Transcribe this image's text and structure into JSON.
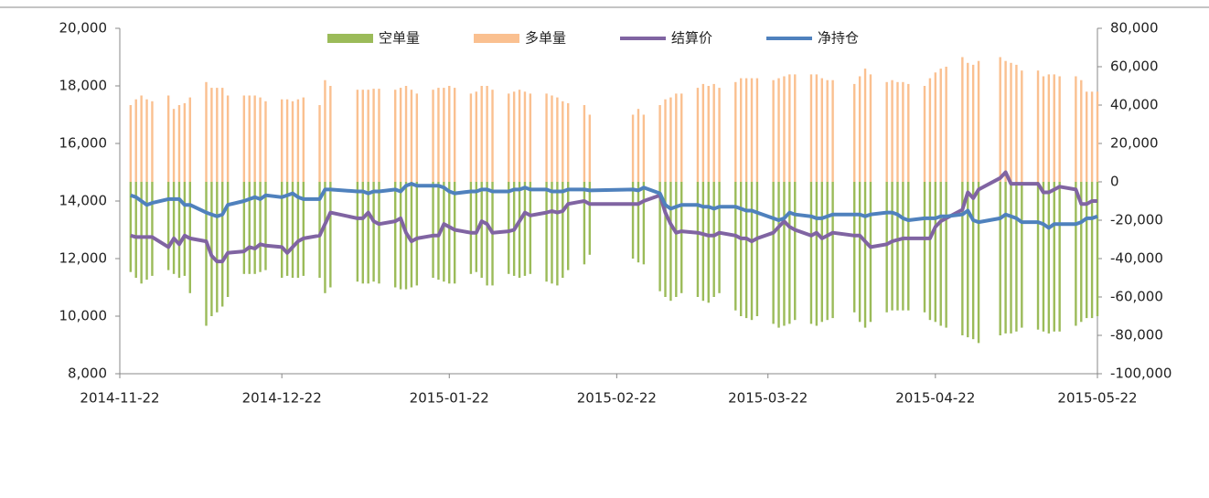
{
  "chart_data": {
    "type": "combo",
    "x": [
      "2014-11-24",
      "2014-11-25",
      "2014-11-26",
      "2014-11-27",
      "2014-11-28",
      "2014-12-01",
      "2014-12-02",
      "2014-12-03",
      "2014-12-04",
      "2014-12-05",
      "2014-12-08",
      "2014-12-09",
      "2014-12-10",
      "2014-12-11",
      "2014-12-12",
      "2014-12-15",
      "2014-12-16",
      "2014-12-17",
      "2014-12-18",
      "2014-12-19",
      "2014-12-22",
      "2014-12-23",
      "2014-12-24",
      "2014-12-25",
      "2014-12-26",
      "2014-12-29",
      "2014-12-30",
      "2014-12-31",
      "2015-01-05",
      "2015-01-06",
      "2015-01-07",
      "2015-01-08",
      "2015-01-09",
      "2015-01-12",
      "2015-01-13",
      "2015-01-14",
      "2015-01-15",
      "2015-01-16",
      "2015-01-19",
      "2015-01-20",
      "2015-01-21",
      "2015-01-22",
      "2015-01-23",
      "2015-01-26",
      "2015-01-27",
      "2015-01-28",
      "2015-01-29",
      "2015-01-30",
      "2015-02-02",
      "2015-02-03",
      "2015-02-04",
      "2015-02-05",
      "2015-02-06",
      "2015-02-09",
      "2015-02-10",
      "2015-02-11",
      "2015-02-12",
      "2015-02-13",
      "2015-02-16",
      "2015-02-17",
      "2015-02-25",
      "2015-02-26",
      "2015-02-27",
      "2015-03-02",
      "2015-03-03",
      "2015-03-04",
      "2015-03-05",
      "2015-03-06",
      "2015-03-09",
      "2015-03-10",
      "2015-03-11",
      "2015-03-12",
      "2015-03-13",
      "2015-03-16",
      "2015-03-17",
      "2015-03-18",
      "2015-03-19",
      "2015-03-20",
      "2015-03-23",
      "2015-03-24",
      "2015-03-25",
      "2015-03-26",
      "2015-03-27",
      "2015-03-30",
      "2015-03-31",
      "2015-04-01",
      "2015-04-02",
      "2015-04-03",
      "2015-04-07",
      "2015-04-08",
      "2015-04-09",
      "2015-04-10",
      "2015-04-13",
      "2015-04-14",
      "2015-04-15",
      "2015-04-16",
      "2015-04-17",
      "2015-04-20",
      "2015-04-21",
      "2015-04-22",
      "2015-04-23",
      "2015-04-24",
      "2015-04-27",
      "2015-04-28",
      "2015-04-29",
      "2015-04-30",
      "2015-05-04",
      "2015-05-05",
      "2015-05-06",
      "2015-05-07",
      "2015-05-08",
      "2015-05-11",
      "2015-05-12",
      "2015-05-13",
      "2015-05-14",
      "2015-05-15",
      "2015-05-18",
      "2015-05-19",
      "2015-05-20",
      "2015-05-21",
      "2015-05-22"
    ],
    "series": [
      {
        "name": "空单量",
        "type": "bar",
        "axis": "y2",
        "color": "#9bbb59",
        "values": [
          -47000,
          -50000,
          -53000,
          -51000,
          -49000,
          -46000,
          -48000,
          -50000,
          -49000,
          -58000,
          -75000,
          -70000,
          -68000,
          -65000,
          -60000,
          -48000,
          -48000,
          -48000,
          -47000,
          -46000,
          -50000,
          -49000,
          -50000,
          -50000,
          -49000,
          -50000,
          -58000,
          -55000,
          -52000,
          -53000,
          -53000,
          -52000,
          -53000,
          -55000,
          -56000,
          -56000,
          -55000,
          -54000,
          -50000,
          -51000,
          -52000,
          -53000,
          -53000,
          -48000,
          -47000,
          -50000,
          -54000,
          -54000,
          -48000,
          -49000,
          -50000,
          -49000,
          -48000,
          -52000,
          -53000,
          -54000,
          -50000,
          -46000,
          -43000,
          -38000,
          -40000,
          -42000,
          -43000,
          -57000,
          -60000,
          -62000,
          -60000,
          -58000,
          -60000,
          -62000,
          -63000,
          -60000,
          -58000,
          -67000,
          -70000,
          -71000,
          -72000,
          -70000,
          -74000,
          -76000,
          -75000,
          -74000,
          -72000,
          -74000,
          -75000,
          -73000,
          -72000,
          -71000,
          -68000,
          -73000,
          -76000,
          -73000,
          -68000,
          -67000,
          -67000,
          -67000,
          -67000,
          -68000,
          -72000,
          -73000,
          -75000,
          -76000,
          -80000,
          -81000,
          -82000,
          -84000,
          -80000,
          -79000,
          -79000,
          -78000,
          -76000,
          -77000,
          -78000,
          -79000,
          -78000,
          -78000,
          -75000,
          -73000,
          -71000,
          -71000,
          -70000
        ]
      },
      {
        "name": "多单量",
        "type": "bar",
        "axis": "y2",
        "color": "#fac090",
        "values": [
          40000,
          43000,
          45000,
          43000,
          42000,
          45000,
          38000,
          40000,
          41000,
          44000,
          52000,
          49000,
          49000,
          49000,
          45000,
          45000,
          45000,
          45000,
          44000,
          42000,
          43000,
          43000,
          42000,
          43000,
          44000,
          40000,
          53000,
          50000,
          48000,
          48000,
          48000,
          48500,
          48500,
          48000,
          49000,
          50000,
          48000,
          46000,
          48000,
          49000,
          49000,
          50000,
          49000,
          46000,
          47000,
          50000,
          50000,
          48000,
          46000,
          47000,
          48000,
          47000,
          46000,
          46000,
          45000,
          44000,
          42000,
          41000,
          40000,
          35000,
          35000,
          38000,
          35000,
          40000,
          43000,
          44000,
          46000,
          46000,
          49000,
          51000,
          50000,
          51000,
          49000,
          52000,
          54000,
          54000,
          54000,
          54000,
          53000,
          54000,
          55000,
          56000,
          56000,
          56000,
          56000,
          54000,
          53000,
          53000,
          51000,
          55000,
          59000,
          56000,
          52000,
          53000,
          52000,
          52000,
          51000,
          50000,
          54000,
          57000,
          59000,
          60000,
          65000,
          62000,
          61000,
          63000,
          65000,
          63000,
          62000,
          61000,
          58000,
          58000,
          55000,
          56000,
          56000,
          55000,
          55000,
          53000,
          47000,
          47000,
          47000
        ]
      },
      {
        "name": "结算价",
        "type": "line",
        "axis": "y",
        "color": "#8064a2",
        "values": [
          12800,
          12750,
          12750,
          12750,
          12750,
          12400,
          12700,
          12500,
          12800,
          12700,
          12600,
          12100,
          11900,
          11900,
          12200,
          12250,
          12400,
          12350,
          12500,
          12450,
          12400,
          12200,
          12400,
          12600,
          12700,
          12800,
          13200,
          13600,
          13400,
          13400,
          13600,
          13300,
          13200,
          13300,
          13400,
          12900,
          12600,
          12700,
          12800,
          12800,
          13200,
          13100,
          13000,
          12900,
          12900,
          13300,
          13200,
          12900,
          12950,
          13000,
          13300,
          13600,
          13500,
          13600,
          13650,
          13600,
          13650,
          13900,
          14000,
          13900,
          13900,
          13900,
          14000,
          14200,
          13600,
          13200,
          12900,
          12950,
          12900,
          12850,
          12800,
          12800,
          12900,
          12800,
          12700,
          12700,
          12600,
          12700,
          12900,
          13100,
          13300,
          13100,
          13000,
          12800,
          12900,
          12700,
          12800,
          12900,
          12800,
          12800,
          12600,
          12400,
          12500,
          12600,
          12650,
          12700,
          12700,
          12700,
          12700,
          13100,
          13300,
          13400,
          13700,
          14300,
          14100,
          14400,
          14800,
          15000,
          14600,
          14600,
          14600,
          14600,
          14300,
          14300,
          14400,
          14500,
          14400,
          13900,
          13900,
          14000,
          14000
        ]
      },
      {
        "name": "净持仓",
        "type": "line",
        "axis": "y2",
        "color": "#4f81bd",
        "values": [
          -7000,
          -8000,
          -10000,
          -12000,
          -11000,
          -9000,
          -9000,
          -9000,
          -12000,
          -12000,
          -16000,
          -17000,
          -18000,
          -17000,
          -12000,
          -10000,
          -9000,
          -8000,
          -9000,
          -7000,
          -8000,
          -7000,
          -6000,
          -8000,
          -9000,
          -9000,
          -4000,
          -4000,
          -5000,
          -5000,
          -6000,
          -5000,
          -5000,
          -4000,
          -5000,
          -2000,
          -1000,
          -2000,
          -2000,
          -2000,
          -3000,
          -5000,
          -6000,
          -5000,
          -5000,
          -4000,
          -4000,
          -5000,
          -5000,
          -4000,
          -4000,
          -3000,
          -4000,
          -4000,
          -5000,
          -5000,
          -5000,
          -4000,
          -4000,
          -4500,
          -4000,
          -4500,
          -3000,
          -6000,
          -12000,
          -14000,
          -13000,
          -12000,
          -12000,
          -13000,
          -13000,
          -14000,
          -13000,
          -13000,
          -14000,
          -15000,
          -15000,
          -16000,
          -19000,
          -20000,
          -19000,
          -16000,
          -17000,
          -18000,
          -19000,
          -19000,
          -18000,
          -17000,
          -17000,
          -17000,
          -18000,
          -17000,
          -16000,
          -16000,
          -17000,
          -19000,
          -20000,
          -19000,
          -19000,
          -19000,
          -18000,
          -18000,
          -17000,
          -15000,
          -20000,
          -21000,
          -19000,
          -17000,
          -18000,
          -19000,
          -21000,
          -21000,
          -22000,
          -24000,
          -22000,
          -22000,
          -22000,
          -21000,
          -19000,
          -19000,
          -18000
        ]
      }
    ],
    "xlim": [
      "2014-11-22",
      "2015-05-22"
    ],
    "xticks": [
      "2014-11-22",
      "2014-12-22",
      "2015-01-22",
      "2015-02-22",
      "2015-03-22",
      "2015-04-22",
      "2015-05-22"
    ],
    "ylim": [
      8000,
      20000
    ],
    "yticks": [
      {
        "value": 8000,
        "label": "8,000"
      },
      {
        "value": 10000,
        "label": "10,000"
      },
      {
        "value": 12000,
        "label": "12,000"
      },
      {
        "value": 14000,
        "label": "14,000"
      },
      {
        "value": 16000,
        "label": "16,000"
      },
      {
        "value": 18000,
        "label": "18,000"
      },
      {
        "value": 20000,
        "label": "20,000"
      }
    ],
    "y2lim": [
      -100000,
      80000
    ],
    "y2ticks": [
      {
        "value": -100000,
        "label": "-100,000"
      },
      {
        "value": -80000,
        "label": "-80,000"
      },
      {
        "value": -60000,
        "label": "-60,000"
      },
      {
        "value": -40000,
        "label": "-40,000"
      },
      {
        "value": -20000,
        "label": "-20,000"
      },
      0,
      {
        "value": 20000,
        "label": "20,000"
      },
      {
        "value": 40000,
        "label": "40,000"
      },
      {
        "value": 60000,
        "label": "60,000"
      },
      {
        "value": 80000,
        "label": "80,000"
      }
    ],
    "legend": "top"
  }
}
